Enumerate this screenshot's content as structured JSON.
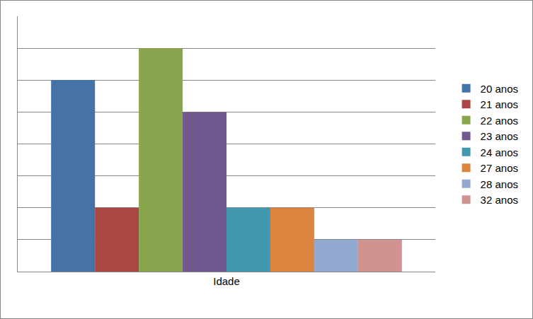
{
  "chart_data": {
    "type": "bar",
    "categories": [
      "Idade"
    ],
    "series": [
      {
        "name": "20 anos",
        "color": "#4572a7",
        "values": [
          6
        ]
      },
      {
        "name": "21 anos",
        "color": "#aa4643",
        "values": [
          2
        ]
      },
      {
        "name": "22 anos",
        "color": "#89a54e",
        "values": [
          7
        ]
      },
      {
        "name": "23 anos",
        "color": "#71588f",
        "values": [
          5
        ]
      },
      {
        "name": "24 anos",
        "color": "#4198af",
        "values": [
          2
        ]
      },
      {
        "name": "27 anos",
        "color": "#db843d",
        "values": [
          2
        ]
      },
      {
        "name": "28 anos",
        "color": "#93a9cf",
        "values": [
          1
        ]
      },
      {
        "name": "32 anos",
        "color": "#d19392",
        "values": [
          1
        ]
      }
    ],
    "ylim": [
      0,
      8
    ],
    "yticks": [
      0,
      1,
      2,
      3,
      4,
      5,
      6,
      7,
      8
    ],
    "grid": true,
    "legend": "right",
    "tick_labels": "x"
  }
}
